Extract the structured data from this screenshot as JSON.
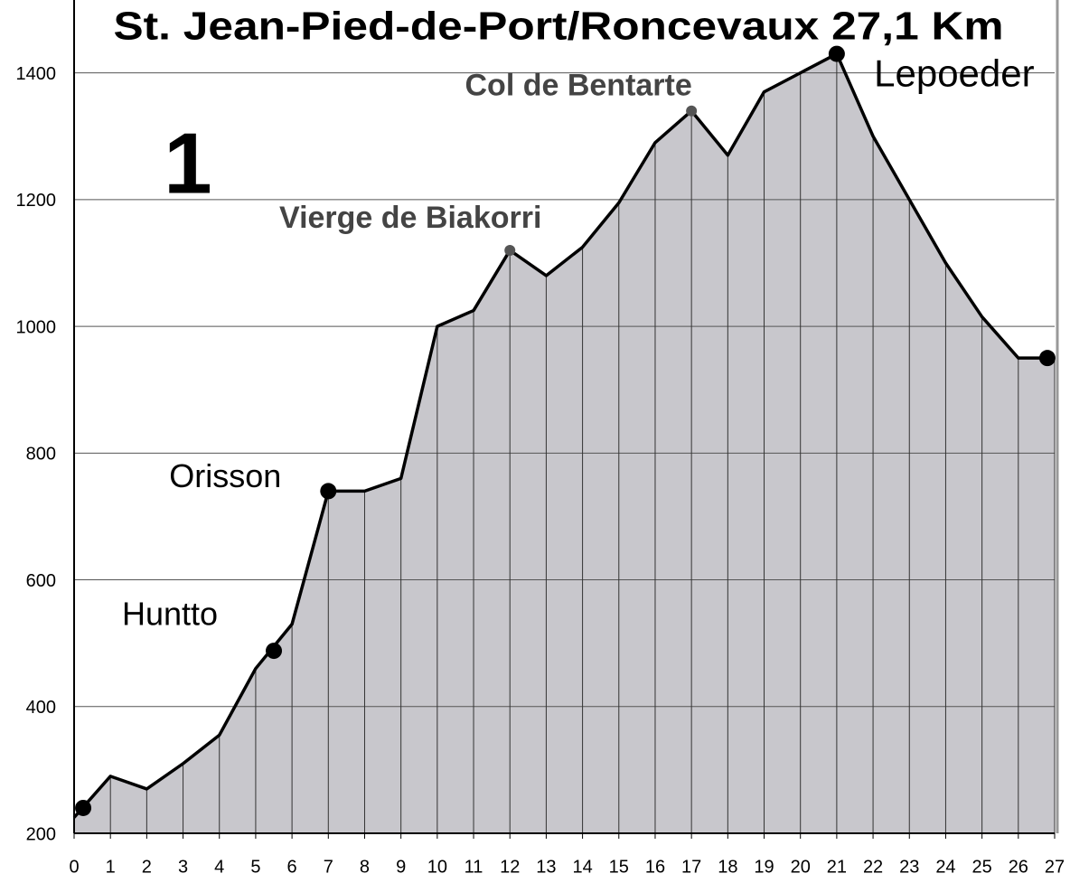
{
  "chart_data": {
    "type": "area",
    "title": "St. Jean-Pied-de-Port/Roncevaux 27,1 Km",
    "stage": "1",
    "x": [
      0,
      1,
      2,
      3,
      4,
      5,
      6,
      7,
      8,
      9,
      10,
      11,
      12,
      13,
      14,
      15,
      16,
      17,
      18,
      19,
      20,
      21,
      22,
      23,
      24,
      25,
      26,
      27
    ],
    "values": [
      225,
      290,
      270,
      310,
      355,
      460,
      530,
      740,
      740,
      760,
      1000,
      1025,
      1120,
      1080,
      1125,
      1195,
      1290,
      1340,
      1270,
      1370,
      1400,
      1430,
      1300,
      1200,
      1100,
      1015,
      950,
      950
    ],
    "color": "#c8c7cc",
    "line_color": "#000000",
    "xlim": [
      0,
      27
    ],
    "ylim": [
      200,
      1515
    ],
    "xticks": [
      0,
      1,
      2,
      3,
      4,
      5,
      6,
      7,
      8,
      9,
      10,
      11,
      12,
      13,
      14,
      15,
      16,
      17,
      18,
      19,
      20,
      21,
      22,
      23,
      24,
      25,
      26,
      27
    ],
    "yticks": [
      200,
      400,
      600,
      800,
      1000,
      1200,
      1400
    ],
    "grid": true,
    "points": [
      {
        "x": 0.25,
        "value": 240,
        "size": "large"
      },
      {
        "x": 5.5,
        "value": 488,
        "size": "large",
        "label": "Huntto"
      },
      {
        "x": 7,
        "value": 740,
        "size": "large",
        "label": "Orisson"
      },
      {
        "x": 12,
        "value": 1120,
        "size": "small",
        "label": "Vierge de Biakorri"
      },
      {
        "x": 17,
        "value": 1340,
        "size": "small",
        "label": "Col de Bentarte"
      },
      {
        "x": 21,
        "value": 1430,
        "size": "large",
        "label": "Lepoeder"
      },
      {
        "x": 26.8,
        "value": 950,
        "size": "large"
      }
    ]
  }
}
